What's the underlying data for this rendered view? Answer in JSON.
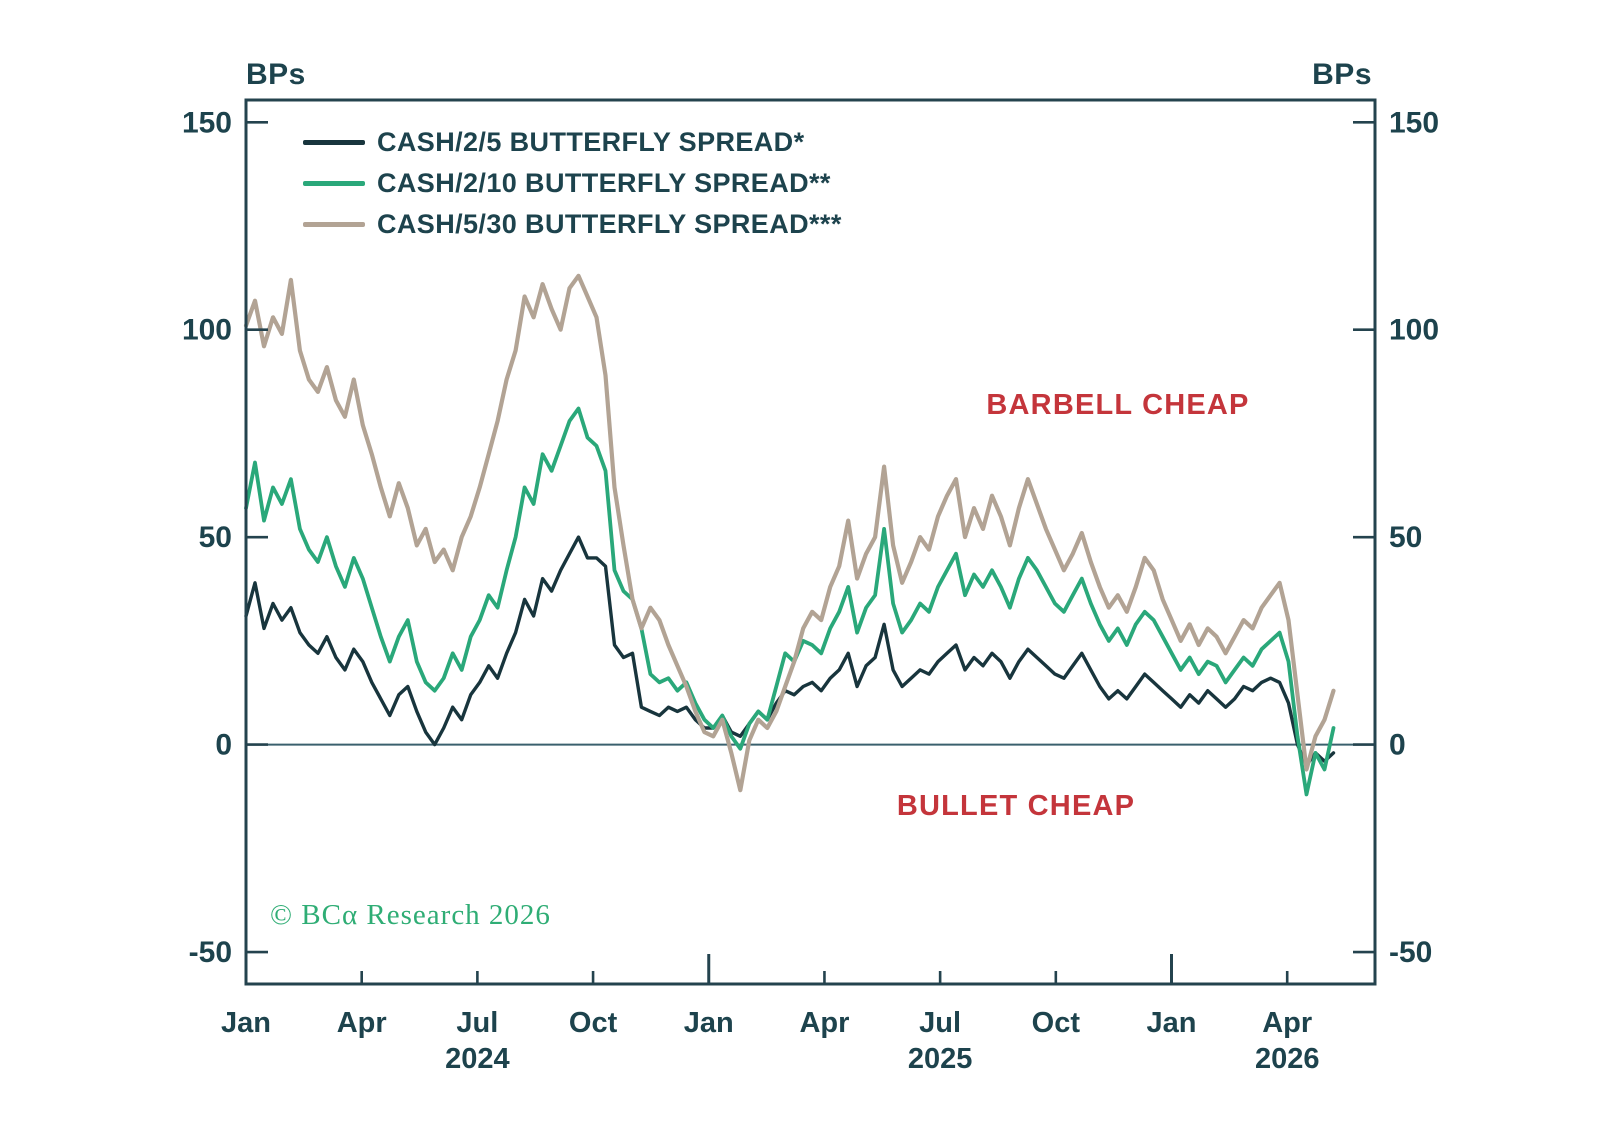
{
  "chart": {
    "unit_left": "BPs",
    "unit_right": "BPs"
  },
  "legend": [
    {
      "label": "CASH/2/5 BUTTERFLY SPREAD*",
      "color": "#18353d"
    },
    {
      "label": "CASH/2/10 BUTTERFLY SPREAD**",
      "color": "#2aa87a"
    },
    {
      "label": "CASH/5/30 BUTTERFLY SPREAD***",
      "color": "#b2a394"
    }
  ],
  "annotations": {
    "barbell": {
      "text": "BARBELL CHEAP",
      "color": "#c4353b"
    },
    "bullet": {
      "text": "BULLET CHEAP",
      "color": "#c4353b"
    }
  },
  "copyright": {
    "text": "© BCα Research 2026",
    "color": "#2fad75"
  },
  "chart_data": {
    "type": "line",
    "title": "",
    "ylabel": "BPs",
    "ylim": [
      -50,
      150
    ],
    "y_ticks": [
      150,
      100,
      50,
      0,
      -50
    ],
    "zero_line": true,
    "x_unit": "months since Jan 2024",
    "x_span_months": 28.2,
    "x_ticks": [
      {
        "label": "Jan",
        "month": 0,
        "major": false,
        "year": ""
      },
      {
        "label": "Apr",
        "month": 3,
        "major": false,
        "year": ""
      },
      {
        "label": "Jul",
        "month": 6,
        "major": false,
        "year": "2024"
      },
      {
        "label": "Oct",
        "month": 9,
        "major": false,
        "year": ""
      },
      {
        "label": "Jan",
        "month": 12,
        "major": true,
        "year": ""
      },
      {
        "label": "Apr",
        "month": 15,
        "major": false,
        "year": ""
      },
      {
        "label": "Jul",
        "month": 18,
        "major": false,
        "year": "2025"
      },
      {
        "label": "Oct",
        "month": 21,
        "major": false,
        "year": ""
      },
      {
        "label": "Jan",
        "month": 24,
        "major": true,
        "year": ""
      },
      {
        "label": "Apr",
        "month": 27,
        "major": false,
        "year": "2026"
      }
    ],
    "sampling": "weekly, values in basis points",
    "series": [
      {
        "name": "CASH/2/5 BUTTERFLY SPREAD*",
        "color": "#18353d",
        "width": 3.4,
        "values": [
          31,
          39,
          28,
          34,
          30,
          33,
          27,
          24,
          22,
          26,
          21,
          18,
          23,
          20,
          15,
          11,
          7,
          12,
          14,
          8,
          3,
          0,
          4,
          9,
          6,
          12,
          15,
          19,
          16,
          22,
          27,
          35,
          31,
          40,
          37,
          42,
          46,
          50,
          45,
          45,
          43,
          24,
          21,
          22,
          9,
          8,
          7,
          9,
          8,
          9,
          6,
          4,
          4,
          7,
          3,
          2,
          5,
          8,
          6,
          10,
          13,
          12,
          14,
          15,
          13,
          16,
          18,
          22,
          14,
          19,
          21,
          29,
          18,
          14,
          16,
          18,
          17,
          20,
          22,
          24,
          18,
          21,
          19,
          22,
          20,
          16,
          20,
          23,
          21,
          19,
          17,
          16,
          19,
          22,
          18,
          14,
          11,
          13,
          11,
          14,
          17,
          15,
          13,
          11,
          9,
          12,
          10,
          13,
          11,
          9,
          11,
          14,
          13,
          15,
          16,
          15,
          10,
          0,
          -5,
          -2,
          -4,
          -2
        ]
      },
      {
        "name": "CASH/2/10 BUTTERFLY SPREAD**",
        "color": "#2aa87a",
        "width": 3.8,
        "values": [
          57,
          68,
          54,
          62,
          58,
          64,
          52,
          47,
          44,
          50,
          43,
          38,
          45,
          40,
          33,
          26,
          20,
          26,
          30,
          20,
          15,
          13,
          16,
          22,
          18,
          26,
          30,
          36,
          33,
          42,
          50,
          62,
          58,
          70,
          66,
          72,
          78,
          81,
          74,
          72,
          66,
          42,
          37,
          35,
          28,
          17,
          15,
          16,
          13,
          15,
          10,
          6,
          4,
          7,
          2,
          -1,
          5,
          8,
          6,
          14,
          22,
          20,
          25,
          24,
          22,
          28,
          32,
          38,
          27,
          33,
          36,
          52,
          34,
          27,
          30,
          34,
          32,
          38,
          42,
          46,
          36,
          41,
          38,
          42,
          38,
          33,
          40,
          45,
          42,
          38,
          34,
          32,
          36,
          40,
          34,
          29,
          25,
          28,
          24,
          29,
          32,
          30,
          26,
          22,
          18,
          21,
          17,
          20,
          19,
          15,
          18,
          21,
          19,
          23,
          25,
          27,
          20,
          2,
          -12,
          -2,
          -6,
          4
        ]
      },
      {
        "name": "CASH/5/30 BUTTERFLY SPREAD***",
        "color": "#b2a394",
        "width": 4.2,
        "values": [
          101,
          107,
          96,
          103,
          99,
          112,
          95,
          88,
          85,
          91,
          83,
          79,
          88,
          77,
          70,
          62,
          55,
          63,
          57,
          48,
          52,
          44,
          47,
          42,
          50,
          55,
          62,
          70,
          78,
          88,
          95,
          108,
          103,
          111,
          105,
          100,
          110,
          113,
          108,
          103,
          89,
          62,
          48,
          35,
          28,
          33,
          30,
          24,
          19,
          14,
          8,
          3,
          2,
          6,
          -2,
          -11,
          1,
          6,
          4,
          8,
          14,
          20,
          28,
          32,
          30,
          38,
          43,
          54,
          40,
          46,
          50,
          67,
          48,
          39,
          44,
          50,
          47,
          55,
          60,
          64,
          50,
          57,
          52,
          60,
          55,
          48,
          57,
          64,
          58,
          52,
          47,
          42,
          46,
          51,
          44,
          38,
          33,
          36,
          32,
          38,
          45,
          42,
          35,
          30,
          25,
          29,
          24,
          28,
          26,
          22,
          26,
          30,
          28,
          33,
          36,
          39,
          30,
          12,
          -6,
          2,
          6,
          13
        ]
      }
    ]
  }
}
